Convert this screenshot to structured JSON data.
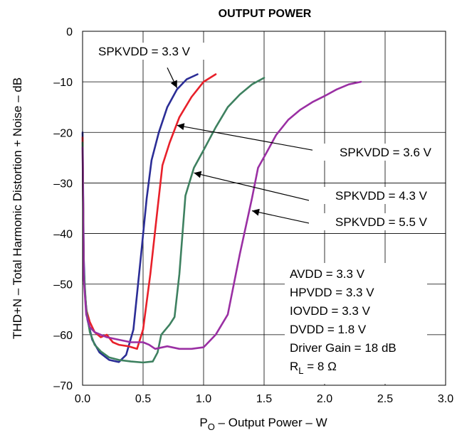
{
  "chart_data": {
    "type": "line",
    "title": "OUTPUT POWER",
    "xlabel": {
      "prefix": "P",
      "sub": "O",
      "rest": " – Output Power – W"
    },
    "ylabel": "THD+N – Total Harmonic Distortion + Noise – dB",
    "xlim": [
      0,
      3.0
    ],
    "ylim": [
      -70,
      0
    ],
    "x_ticks": [
      0.0,
      0.5,
      1.0,
      1.5,
      2.0,
      2.5,
      3.0
    ],
    "x_tick_labels": [
      "0.0",
      "0.5",
      "1.0",
      "1.5",
      "2.0",
      "2.5",
      "3.0"
    ],
    "y_ticks": [
      0,
      -10,
      -20,
      -30,
      -40,
      -50,
      -60,
      -70
    ],
    "y_tick_labels": [
      "0",
      "–10",
      "–20",
      "–30",
      "–40",
      "–50",
      "–60",
      "–70"
    ],
    "grid": true,
    "series": [
      {
        "name": "SPKVDD = 3.3 V",
        "color": "#2b2d96",
        "points": [
          [
            0.0,
            -20
          ],
          [
            0.01,
            -45
          ],
          [
            0.02,
            -52
          ],
          [
            0.04,
            -57
          ],
          [
            0.08,
            -61
          ],
          [
            0.14,
            -63.5
          ],
          [
            0.22,
            -65
          ],
          [
            0.3,
            -65.4
          ],
          [
            0.36,
            -64
          ],
          [
            0.42,
            -59
          ],
          [
            0.48,
            -45
          ],
          [
            0.53,
            -33
          ],
          [
            0.57,
            -25.5
          ],
          [
            0.63,
            -20
          ],
          [
            0.7,
            -15
          ],
          [
            0.78,
            -11.5
          ],
          [
            0.86,
            -9.5
          ],
          [
            0.95,
            -8.5
          ]
        ]
      },
      {
        "name": "SPKVDD = 3.6 V",
        "color": "#e8202a",
        "points": [
          [
            0.0,
            -21
          ],
          [
            0.01,
            -48
          ],
          [
            0.03,
            -55
          ],
          [
            0.06,
            -57.5
          ],
          [
            0.1,
            -59.5
          ],
          [
            0.15,
            -60.5
          ],
          [
            0.2,
            -60
          ],
          [
            0.25,
            -61.5
          ],
          [
            0.3,
            -62
          ],
          [
            0.38,
            -62.3
          ],
          [
            0.45,
            -62.8
          ],
          [
            0.5,
            -59
          ],
          [
            0.56,
            -48
          ],
          [
            0.62,
            -35
          ],
          [
            0.66,
            -26.5
          ],
          [
            0.72,
            -22
          ],
          [
            0.8,
            -17
          ],
          [
            0.9,
            -13
          ],
          [
            1.0,
            -10
          ],
          [
            1.1,
            -8.5
          ]
        ]
      },
      {
        "name": "SPKVDD = 4.3 V",
        "color": "#3e8160",
        "points": [
          [
            0.0,
            -22
          ],
          [
            0.01,
            -47
          ],
          [
            0.03,
            -55
          ],
          [
            0.06,
            -59.5
          ],
          [
            0.1,
            -62
          ],
          [
            0.15,
            -63.3
          ],
          [
            0.22,
            -64.5
          ],
          [
            0.3,
            -65
          ],
          [
            0.4,
            -65.3
          ],
          [
            0.5,
            -65.5
          ],
          [
            0.58,
            -65.3
          ],
          [
            0.62,
            -63.5
          ],
          [
            0.65,
            -60
          ],
          [
            0.72,
            -58
          ],
          [
            0.76,
            -56.5
          ],
          [
            0.8,
            -48
          ],
          [
            0.85,
            -32.5
          ],
          [
            0.92,
            -27
          ],
          [
            1.0,
            -23.5
          ],
          [
            1.1,
            -19
          ],
          [
            1.2,
            -15
          ],
          [
            1.3,
            -12.5
          ],
          [
            1.4,
            -10.5
          ],
          [
            1.5,
            -9.2
          ]
        ]
      },
      {
        "name": "SPKVDD = 5.5 V",
        "color": "#9a2fa3",
        "points": [
          [
            0.0,
            -23
          ],
          [
            0.01,
            -49
          ],
          [
            0.03,
            -56
          ],
          [
            0.06,
            -58.5
          ],
          [
            0.1,
            -59.5
          ],
          [
            0.15,
            -60
          ],
          [
            0.2,
            -60.5
          ],
          [
            0.3,
            -61
          ],
          [
            0.4,
            -61.5
          ],
          [
            0.5,
            -61.5
          ],
          [
            0.55,
            -62
          ],
          [
            0.6,
            -62.8
          ],
          [
            0.7,
            -62.3
          ],
          [
            0.8,
            -62.8
          ],
          [
            0.9,
            -62.8
          ],
          [
            1.0,
            -62.5
          ],
          [
            1.1,
            -60
          ],
          [
            1.2,
            -56
          ],
          [
            1.3,
            -44
          ],
          [
            1.4,
            -33
          ],
          [
            1.45,
            -27
          ],
          [
            1.52,
            -24
          ],
          [
            1.6,
            -20.5
          ],
          [
            1.7,
            -17.5
          ],
          [
            1.8,
            -15.5
          ],
          [
            1.9,
            -14
          ],
          [
            2.0,
            -12.8
          ],
          [
            2.1,
            -11.5
          ],
          [
            2.2,
            -10.5
          ],
          [
            2.3,
            -10
          ]
        ]
      }
    ],
    "annotations": [
      {
        "label": "SPKVDD = 3.3 V",
        "tail": [
          0.7,
          -7.2
        ],
        "head": [
          0.78,
          -11.2
        ]
      },
      {
        "label": "SPKVDD = 3.6 V",
        "tail": [
          1.9,
          -23.5
        ],
        "head": [
          0.78,
          -18.6
        ]
      },
      {
        "label": "SPKVDD = 4.3 V",
        "tail": [
          1.88,
          -33.5
        ],
        "head": [
          0.92,
          -28
        ]
      },
      {
        "label": "SPKVDD = 5.5 V",
        "tail": [
          1.88,
          -38
        ],
        "head": [
          1.4,
          -35.5
        ]
      }
    ],
    "conditions": [
      "AVDD = 3.3 V",
      "HPVDD = 3.3 V",
      "IOVDD = 3.3 V",
      "DVDD = 1.8 V",
      "Driver Gain = 18 dB",
      {
        "prefix": "R",
        "sub": "L",
        "rest": "  = 8 Ω"
      }
    ]
  }
}
